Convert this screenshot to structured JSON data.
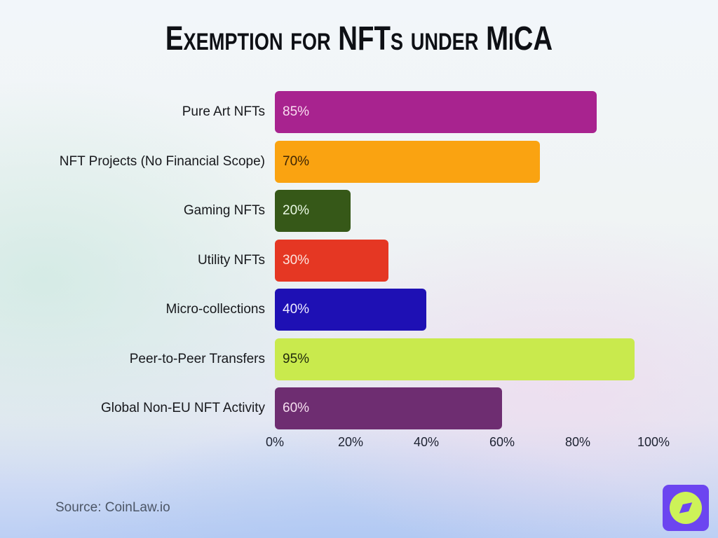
{
  "title": "Exemption for NFTs under MiCA",
  "source": "Source: CoinLaw.io",
  "chart_data": {
    "type": "bar",
    "orientation": "horizontal",
    "title": "Exemption for NFTs under MiCA",
    "categories": [
      "Pure Art NFTs",
      "NFT Projects (No Financial Scope)",
      "Gaming NFTs",
      "Utility NFTs",
      "Micro-collections",
      "Peer-to-Peer Transfers",
      "Global Non-EU NFT Activity"
    ],
    "values": [
      85,
      70,
      20,
      30,
      40,
      95,
      60
    ],
    "value_labels": [
      "85%",
      "70%",
      "20%",
      "30%",
      "40%",
      "95%",
      "60%"
    ],
    "bar_colors": [
      "#a8238f",
      "#faa311",
      "#365818",
      "#e53723",
      "#1e10b4",
      "#c9ea4d",
      "#6e2d71"
    ],
    "value_label_colors": [
      "#fadcf0",
      "#3e2504",
      "#eaf9e4",
      "#fde4df",
      "#f0edff",
      "#222b0c",
      "#f6dff0"
    ],
    "xlabel": "",
    "ylabel": "",
    "xlim": [
      0,
      100
    ],
    "x_tick_values": [
      0,
      20,
      40,
      60,
      80,
      100
    ],
    "x_tick_labels": [
      "0%",
      "20%",
      "40%",
      "60%",
      "80%",
      "100%"
    ],
    "grid": false,
    "legend": false,
    "value_label_position": "inside-left"
  },
  "logo": {
    "name": "coinlaw-compass-logo",
    "square_color": "#6c45f0",
    "circle_color": "#cdf258",
    "needle_color": "#6c45f0"
  }
}
